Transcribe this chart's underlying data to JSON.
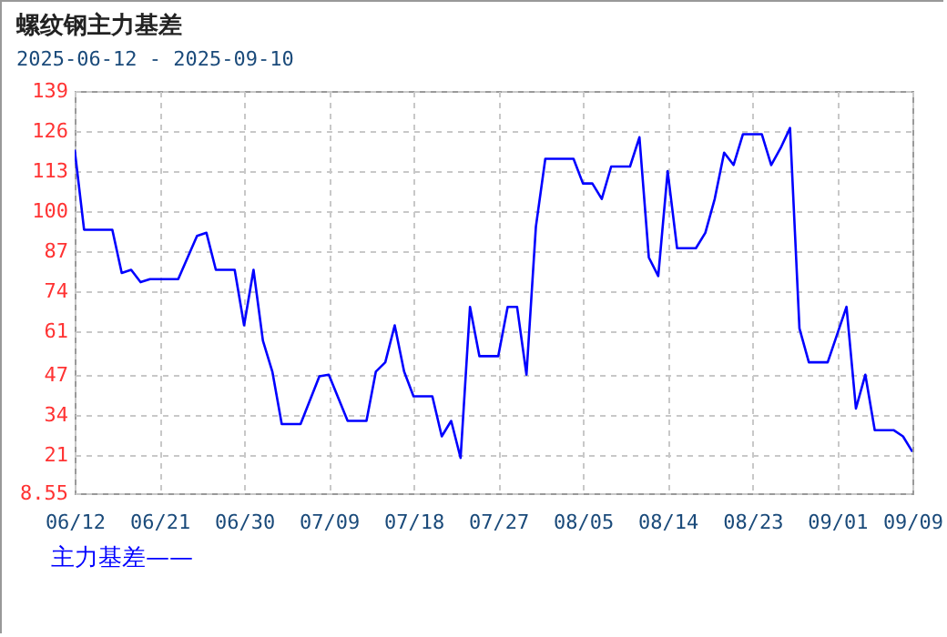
{
  "chart_data": {
    "type": "line",
    "title": "螺纹钢主力基差",
    "subtitle": "2025-06-12 - 2025-09-10",
    "x": [
      "2025-06-12",
      "2025-06-13",
      "2025-06-16",
      "2025-06-17",
      "2025-06-18",
      "2025-06-19",
      "2025-06-20",
      "2025-06-23",
      "2025-06-25",
      "2025-06-26",
      "2025-06-27",
      "2025-06-29",
      "2025-06-30",
      "2025-07-01",
      "2025-07-02",
      "2025-07-03",
      "2025-07-04",
      "2025-07-06",
      "2025-07-08",
      "2025-07-09",
      "2025-07-11",
      "2025-07-13",
      "2025-07-14",
      "2025-07-15",
      "2025-07-16",
      "2025-07-17",
      "2025-07-18",
      "2025-07-20",
      "2025-07-21",
      "2025-07-22",
      "2025-07-23",
      "2025-07-24",
      "2025-07-25",
      "2025-07-27",
      "2025-07-28",
      "2025-07-29",
      "2025-07-30",
      "2025-07-31",
      "2025-08-01",
      "2025-08-04",
      "2025-08-05",
      "2025-08-06",
      "2025-08-07",
      "2025-08-08",
      "2025-08-10",
      "2025-08-11",
      "2025-08-12",
      "2025-08-13",
      "2025-08-14",
      "2025-08-15",
      "2025-08-17",
      "2025-08-18",
      "2025-08-19",
      "2025-08-20",
      "2025-08-21",
      "2025-08-22",
      "2025-08-24",
      "2025-08-25",
      "2025-08-26",
      "2025-08-27",
      "2025-08-28",
      "2025-08-29",
      "2025-08-31",
      "2025-09-01",
      "2025-09-02",
      "2025-09-03",
      "2025-09-04",
      "2025-09-05",
      "2025-09-07",
      "2025-09-08",
      "2025-09-09"
    ],
    "series": [
      {
        "name": "主力基差——",
        "color": "#0000ff",
        "values": [
          120,
          94,
          94,
          80,
          81,
          77,
          78,
          78,
          92,
          93,
          81,
          81,
          63,
          81,
          58,
          48,
          31,
          31,
          46.5,
          47,
          32,
          32,
          48,
          51,
          63,
          48,
          40,
          40,
          27,
          32,
          20,
          69,
          53,
          53,
          69,
          69,
          47,
          95,
          117,
          117,
          109,
          109,
          104,
          114.5,
          114.5,
          124,
          85,
          79,
          113,
          88,
          88,
          93,
          104,
          119,
          115,
          125,
          125,
          115,
          120.5,
          127,
          62,
          51,
          51,
          60,
          69,
          36,
          47,
          29,
          29,
          27,
          22
        ]
      }
    ],
    "xlim": [
      "2025-06-12",
      "2025-09-09"
    ],
    "xticks": [
      {
        "value": "2025-06-12",
        "label": "06/12"
      },
      {
        "value": "2025-06-21",
        "label": "06/21"
      },
      {
        "value": "2025-06-30",
        "label": "06/30"
      },
      {
        "value": "2025-07-09",
        "label": "07/09"
      },
      {
        "value": "2025-07-18",
        "label": "07/18"
      },
      {
        "value": "2025-07-27",
        "label": "07/27"
      },
      {
        "value": "2025-08-05",
        "label": "08/05"
      },
      {
        "value": "2025-08-14",
        "label": "08/14"
      },
      {
        "value": "2025-08-23",
        "label": "08/23"
      },
      {
        "value": "2025-09-01",
        "label": "09/01"
      },
      {
        "value": "2025-09-09",
        "label": "09/09"
      }
    ],
    "ylim": [
      8.55,
      139
    ],
    "yticks": [
      8.55,
      21,
      34,
      47,
      61,
      74,
      87,
      100,
      113,
      126,
      139
    ],
    "grid": true,
    "legend": "bottom left",
    "marker": "none",
    "line_style": "solid"
  }
}
